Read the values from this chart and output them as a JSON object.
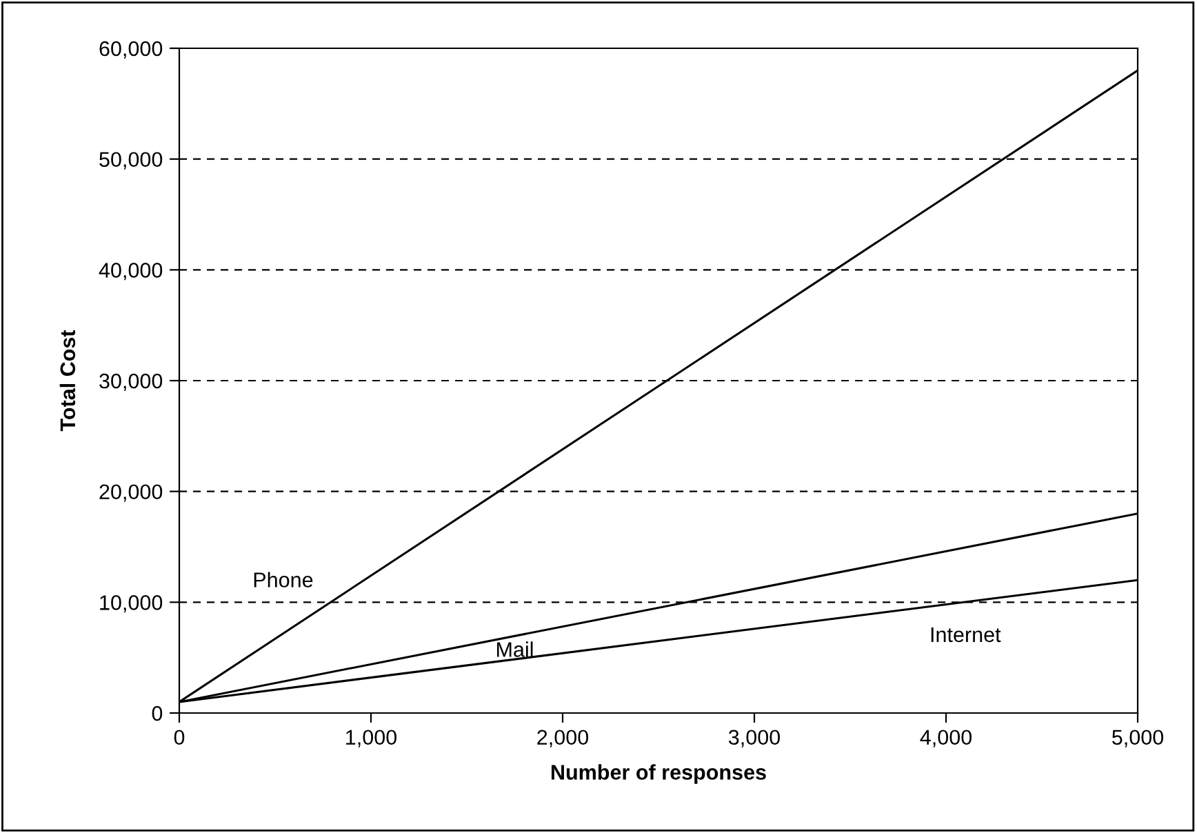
{
  "chart_data": {
    "type": "line",
    "xlabel": "Number of responses",
    "ylabel": "Total Cost",
    "x": [
      0,
      5000
    ],
    "series": [
      {
        "name": "Phone",
        "color": "#000000",
        "values": [
          1000,
          58000
        ]
      },
      {
        "name": "Mail",
        "color": "#000000",
        "values": [
          1000,
          18000
        ]
      },
      {
        "name": "Internet",
        "color": "#000000",
        "values": [
          1000,
          12000
        ]
      }
    ],
    "xlim": [
      0,
      5000
    ],
    "xticks": [
      {
        "value": 0,
        "label": "0"
      },
      {
        "value": 1000,
        "label": "1,000"
      },
      {
        "value": 2000,
        "label": "2,000"
      },
      {
        "value": 3000,
        "label": "3,000"
      },
      {
        "value": 4000,
        "label": "4,000"
      },
      {
        "value": 5000,
        "label": "5,000"
      }
    ],
    "ylim": [
      0,
      60000
    ],
    "yticks": [
      {
        "value": 0,
        "label": "0"
      },
      {
        "value": 10000,
        "label": "10,000"
      },
      {
        "value": 20000,
        "label": "20,000"
      },
      {
        "value": 30000,
        "label": "30,000"
      },
      {
        "value": 40000,
        "label": "40,000"
      },
      {
        "value": 50000,
        "label": "50,000"
      },
      {
        "value": 60000,
        "label": "60,000"
      }
    ],
    "grid": "y",
    "line_style": "solid",
    "marker": "none",
    "legend": false
  }
}
